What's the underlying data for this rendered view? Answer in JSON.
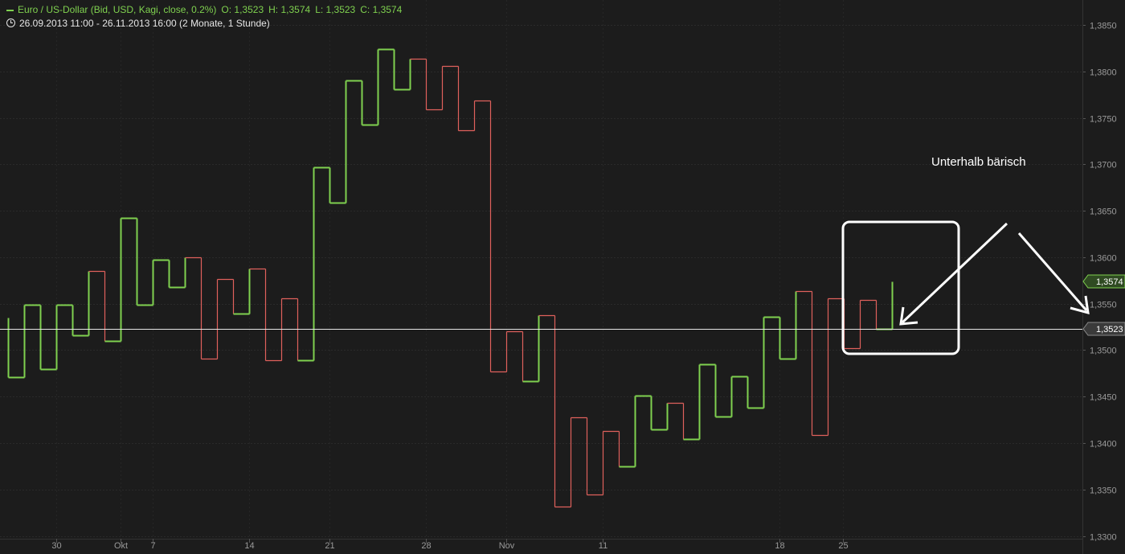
{
  "header": {
    "title": "Euro / US-Dollar (Bid, USD, Kagi, close, 0.2%)",
    "open": "O: 1,3523",
    "high": "H: 1,3574",
    "low": "L: 1,3523",
    "close": "C: 1,3574",
    "range": "26.09.2013 11:00 - 26.11.2013 16:00 (2 Monate, 1 Stunde)"
  },
  "chart_data": {
    "type": "line",
    "subtype": "kagi",
    "ylim": [
      1.3297,
      1.3877
    ],
    "y_ticks": [
      {
        "value": 1.385,
        "label": "1,3850"
      },
      {
        "value": 1.38,
        "label": "1,3800"
      },
      {
        "value": 1.375,
        "label": "1,3750"
      },
      {
        "value": 1.37,
        "label": "1,3700"
      },
      {
        "value": 1.365,
        "label": "1,3650"
      },
      {
        "value": 1.36,
        "label": "1,3600"
      },
      {
        "value": 1.355,
        "label": "1,3550"
      },
      {
        "value": 1.35,
        "label": "1,3500"
      },
      {
        "value": 1.345,
        "label": "1,3450"
      },
      {
        "value": 1.34,
        "label": "1,3400"
      },
      {
        "value": 1.335,
        "label": "1,3350"
      },
      {
        "value": 1.33,
        "label": "1,3300"
      }
    ],
    "x_ticks": [
      "30",
      "Okt",
      "7",
      "14",
      "21",
      "28",
      "Nov",
      "11",
      "18",
      "25"
    ],
    "grid": true,
    "up_color": "#7fd14f",
    "down_color": "#e0615c",
    "kagi_segments": [
      {
        "low": 1.3471,
        "high": 1.3535,
        "color": "up"
      },
      {
        "low": 1.3471,
        "high": 1.3549,
        "color": "up"
      },
      {
        "low": 1.348,
        "high": 1.3549,
        "color": "up"
      },
      {
        "low": 1.348,
        "high": 1.3549,
        "color": "up"
      },
      {
        "low": 1.3516,
        "high": 1.3549,
        "color": "up"
      },
      {
        "low": 1.3516,
        "high": 1.3585,
        "color": "up"
      },
      {
        "low": 1.351,
        "high": 1.3585,
        "color": "down"
      },
      {
        "low": 1.351,
        "high": 1.3642,
        "color": "up"
      },
      {
        "low": 1.3549,
        "high": 1.3642,
        "color": "up"
      },
      {
        "low": 1.3549,
        "high": 1.3597,
        "color": "up"
      },
      {
        "low": 1.3568,
        "high": 1.3597,
        "color": "up"
      },
      {
        "low": 1.3568,
        "high": 1.36,
        "color": "up"
      },
      {
        "low": 1.3491,
        "high": 1.36,
        "color": "down"
      },
      {
        "low": 1.3491,
        "high": 1.3577,
        "color": "down"
      },
      {
        "low": 1.3539,
        "high": 1.3577,
        "color": "down"
      },
      {
        "low": 1.3539,
        "high": 1.3588,
        "color": "up"
      },
      {
        "low": 1.3489,
        "high": 1.3588,
        "color": "down"
      },
      {
        "low": 1.3489,
        "high": 1.3556,
        "color": "down"
      },
      {
        "low": 1.3489,
        "high": 1.3556,
        "color": "down"
      },
      {
        "low": 1.3489,
        "high": 1.3697,
        "color": "up"
      },
      {
        "low": 1.3659,
        "high": 1.3697,
        "color": "up"
      },
      {
        "low": 1.3659,
        "high": 1.379,
        "color": "up"
      },
      {
        "low": 1.3743,
        "high": 1.379,
        "color": "up"
      },
      {
        "low": 1.3743,
        "high": 1.3824,
        "color": "up"
      },
      {
        "low": 1.3781,
        "high": 1.3824,
        "color": "up"
      },
      {
        "low": 1.3781,
        "high": 1.3814,
        "color": "up"
      },
      {
        "low": 1.3759,
        "high": 1.3814,
        "color": "down"
      },
      {
        "low": 1.3759,
        "high": 1.3806,
        "color": "down"
      },
      {
        "low": 1.3737,
        "high": 1.3806,
        "color": "down"
      },
      {
        "low": 1.3737,
        "high": 1.3769,
        "color": "down"
      },
      {
        "low": 1.3477,
        "high": 1.3769,
        "color": "down"
      },
      {
        "low": 1.3477,
        "high": 1.352,
        "color": "down"
      },
      {
        "low": 1.3467,
        "high": 1.352,
        "color": "down"
      },
      {
        "low": 1.3467,
        "high": 1.3538,
        "color": "up"
      },
      {
        "low": 1.3332,
        "high": 1.3538,
        "color": "down"
      },
      {
        "low": 1.3332,
        "high": 1.3428,
        "color": "down"
      },
      {
        "low": 1.3345,
        "high": 1.3428,
        "color": "down"
      },
      {
        "low": 1.3345,
        "high": 1.3413,
        "color": "down"
      },
      {
        "low": 1.3375,
        "high": 1.3413,
        "color": "down"
      },
      {
        "low": 1.3375,
        "high": 1.3451,
        "color": "up"
      },
      {
        "low": 1.3415,
        "high": 1.3451,
        "color": "up"
      },
      {
        "low": 1.3415,
        "high": 1.3443,
        "color": "up"
      },
      {
        "low": 1.3404,
        "high": 1.3443,
        "color": "down"
      },
      {
        "low": 1.3404,
        "high": 1.3485,
        "color": "up"
      },
      {
        "low": 1.3429,
        "high": 1.3485,
        "color": "up"
      },
      {
        "low": 1.3429,
        "high": 1.3472,
        "color": "up"
      },
      {
        "low": 1.3438,
        "high": 1.3472,
        "color": "up"
      },
      {
        "low": 1.3438,
        "high": 1.3536,
        "color": "up"
      },
      {
        "low": 1.3491,
        "high": 1.3536,
        "color": "up"
      },
      {
        "low": 1.3491,
        "high": 1.3564,
        "color": "up"
      },
      {
        "low": 1.3409,
        "high": 1.3564,
        "color": "down"
      },
      {
        "low": 1.3409,
        "high": 1.3556,
        "color": "down"
      },
      {
        "low": 1.3502,
        "high": 1.3556,
        "color": "down"
      },
      {
        "low": 1.3502,
        "high": 1.3554,
        "color": "down"
      },
      {
        "low": 1.3523,
        "high": 1.3554,
        "color": "down"
      },
      {
        "low": 1.3523,
        "high": 1.3574,
        "color": "up"
      }
    ],
    "price_tags": [
      {
        "value": 1.3574,
        "label": "1,3574",
        "color": "up"
      },
      {
        "value": 1.3523,
        "label": "1,3523",
        "color": "neutral"
      }
    ],
    "reference_line": 1.3523,
    "annotations": [
      {
        "text": "Unterhalb bärisch"
      }
    ]
  }
}
